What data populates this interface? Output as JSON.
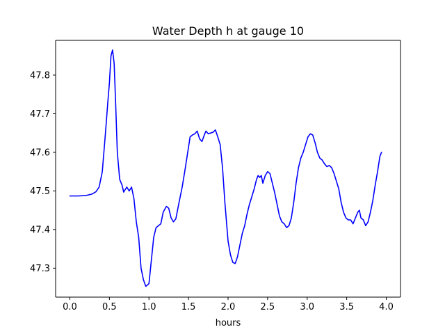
{
  "chart_data": {
    "type": "line",
    "title": "Water Depth h at gauge 10",
    "xlabel": "hours",
    "ylabel": "",
    "xlim": [
      -0.18,
      4.18
    ],
    "ylim": [
      47.225,
      47.89
    ],
    "xticks": [
      0.0,
      0.5,
      1.0,
      1.5,
      2.0,
      2.5,
      3.0,
      3.5,
      4.0
    ],
    "xtick_labels": [
      "0.0",
      "0.5",
      "1.0",
      "1.5",
      "2.0",
      "2.5",
      "3.0",
      "3.5",
      "4.0"
    ],
    "yticks": [
      47.3,
      47.4,
      47.5,
      47.6,
      47.7,
      47.8
    ],
    "ytick_labels": [
      "47.3",
      "47.4",
      "47.5",
      "47.6",
      "47.7",
      "47.8"
    ],
    "grid": false,
    "series": [
      {
        "color": "#0000ff",
        "points": [
          [
            0.0,
            47.487
          ],
          [
            0.1,
            47.487
          ],
          [
            0.2,
            47.488
          ],
          [
            0.28,
            47.492
          ],
          [
            0.33,
            47.498
          ],
          [
            0.37,
            47.51
          ],
          [
            0.41,
            47.55
          ],
          [
            0.45,
            47.65
          ],
          [
            0.48,
            47.73
          ],
          [
            0.5,
            47.78
          ],
          [
            0.52,
            47.85
          ],
          [
            0.54,
            47.865
          ],
          [
            0.56,
            47.83
          ],
          [
            0.58,
            47.72
          ],
          [
            0.6,
            47.6
          ],
          [
            0.63,
            47.53
          ],
          [
            0.66,
            47.515
          ],
          [
            0.68,
            47.497
          ],
          [
            0.72,
            47.51
          ],
          [
            0.75,
            47.5
          ],
          [
            0.78,
            47.51
          ],
          [
            0.81,
            47.48
          ],
          [
            0.84,
            47.42
          ],
          [
            0.87,
            47.38
          ],
          [
            0.9,
            47.3
          ],
          [
            0.93,
            47.27
          ],
          [
            0.96,
            47.253
          ],
          [
            1.0,
            47.26
          ],
          [
            1.03,
            47.32
          ],
          [
            1.06,
            47.38
          ],
          [
            1.09,
            47.405
          ],
          [
            1.12,
            47.41
          ],
          [
            1.15,
            47.415
          ],
          [
            1.18,
            47.445
          ],
          [
            1.22,
            47.46
          ],
          [
            1.25,
            47.455
          ],
          [
            1.28,
            47.43
          ],
          [
            1.31,
            47.42
          ],
          [
            1.34,
            47.428
          ],
          [
            1.38,
            47.47
          ],
          [
            1.42,
            47.51
          ],
          [
            1.46,
            47.56
          ],
          [
            1.49,
            47.6
          ],
          [
            1.52,
            47.64
          ],
          [
            1.55,
            47.645
          ],
          [
            1.58,
            47.648
          ],
          [
            1.61,
            47.655
          ],
          [
            1.64,
            47.635
          ],
          [
            1.67,
            47.628
          ],
          [
            1.7,
            47.645
          ],
          [
            1.72,
            47.655
          ],
          [
            1.75,
            47.648
          ],
          [
            1.78,
            47.65
          ],
          [
            1.81,
            47.652
          ],
          [
            1.84,
            47.658
          ],
          [
            1.87,
            47.64
          ],
          [
            1.9,
            47.62
          ],
          [
            1.93,
            47.56
          ],
          [
            1.96,
            47.47
          ],
          [
            2.0,
            47.37
          ],
          [
            2.03,
            47.335
          ],
          [
            2.06,
            47.315
          ],
          [
            2.09,
            47.312
          ],
          [
            2.12,
            47.33
          ],
          [
            2.15,
            47.36
          ],
          [
            2.18,
            47.39
          ],
          [
            2.21,
            47.41
          ],
          [
            2.24,
            47.44
          ],
          [
            2.27,
            47.465
          ],
          [
            2.3,
            47.485
          ],
          [
            2.33,
            47.505
          ],
          [
            2.36,
            47.53
          ],
          [
            2.38,
            47.54
          ],
          [
            2.4,
            47.535
          ],
          [
            2.42,
            47.54
          ],
          [
            2.44,
            47.52
          ],
          [
            2.47,
            47.54
          ],
          [
            2.5,
            47.55
          ],
          [
            2.53,
            47.545
          ],
          [
            2.56,
            47.52
          ],
          [
            2.59,
            47.495
          ],
          [
            2.62,
            47.465
          ],
          [
            2.65,
            47.435
          ],
          [
            2.68,
            47.42
          ],
          [
            2.71,
            47.415
          ],
          [
            2.74,
            47.405
          ],
          [
            2.77,
            47.41
          ],
          [
            2.8,
            47.43
          ],
          [
            2.83,
            47.47
          ],
          [
            2.86,
            47.52
          ],
          [
            2.89,
            47.56
          ],
          [
            2.92,
            47.585
          ],
          [
            2.95,
            47.6
          ],
          [
            2.98,
            47.62
          ],
          [
            3.01,
            47.64
          ],
          [
            3.04,
            47.648
          ],
          [
            3.07,
            47.645
          ],
          [
            3.1,
            47.625
          ],
          [
            3.13,
            47.6
          ],
          [
            3.16,
            47.585
          ],
          [
            3.19,
            47.58
          ],
          [
            3.22,
            47.57
          ],
          [
            3.25,
            47.563
          ],
          [
            3.28,
            47.566
          ],
          [
            3.31,
            47.56
          ],
          [
            3.34,
            47.545
          ],
          [
            3.37,
            47.525
          ],
          [
            3.4,
            47.505
          ],
          [
            3.43,
            47.47
          ],
          [
            3.46,
            47.445
          ],
          [
            3.49,
            47.43
          ],
          [
            3.52,
            47.425
          ],
          [
            3.55,
            47.425
          ],
          [
            3.58,
            47.415
          ],
          [
            3.61,
            47.43
          ],
          [
            3.64,
            47.445
          ],
          [
            3.66,
            47.45
          ],
          [
            3.68,
            47.43
          ],
          [
            3.71,
            47.425
          ],
          [
            3.74,
            47.41
          ],
          [
            3.77,
            47.42
          ],
          [
            3.8,
            47.445
          ],
          [
            3.83,
            47.475
          ],
          [
            3.86,
            47.515
          ],
          [
            3.89,
            47.55
          ],
          [
            3.92,
            47.59
          ],
          [
            3.94,
            47.6
          ]
        ]
      }
    ]
  }
}
